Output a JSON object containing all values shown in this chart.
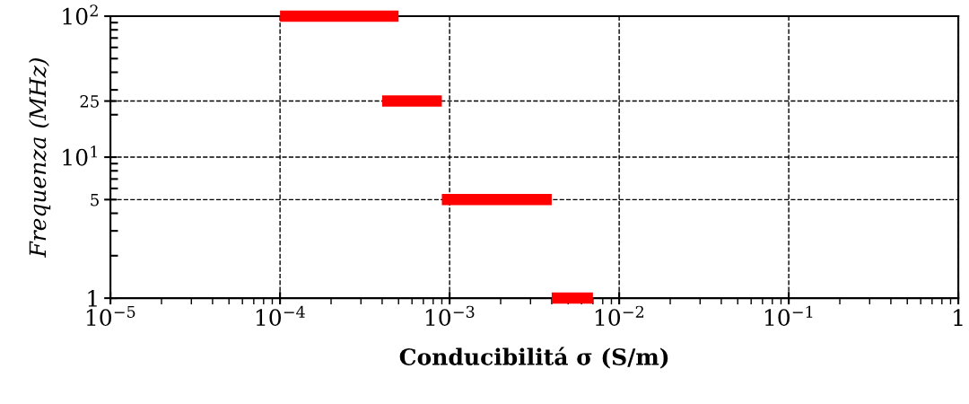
{
  "chart_data": {
    "type": "line",
    "xlabel": "Conducibilitá σ (S/m)",
    "ylabel": "Frequenza (MHz)",
    "log": "xy",
    "grid": true,
    "marker": "none",
    "line_style": "solid",
    "xlim": [
      1e-05,
      1
    ],
    "ylim": [
      1,
      100
    ],
    "xticks": [
      {
        "value": 1e-05,
        "label": "10$^{−5}$"
      },
      {
        "value": 0.0001,
        "label": "10$^{−4}$"
      },
      {
        "value": 0.001,
        "label": "10$^{−3}$"
      },
      {
        "value": 0.01,
        "label": "10$^{−2}$"
      },
      {
        "value": 0.1,
        "label": "10$^{−1}$"
      },
      1
    ],
    "yticks": [
      1,
      5,
      {
        "value": 10,
        "label": "10$^{1}$"
      },
      25,
      {
        "value": 100,
        "label": "10$^{2}$"
      }
    ],
    "series": [
      {
        "color": "#ff0000",
        "x": [
          0.0001,
          0.0005
        ],
        "values": [
          100,
          100
        ]
      },
      {
        "color": "#ff0000",
        "x": [
          0.0004,
          0.0009
        ],
        "values": [
          25,
          25
        ]
      },
      {
        "color": "#ff0000",
        "x": [
          0.0009,
          0.004
        ],
        "values": [
          5,
          5
        ]
      },
      {
        "color": "#ff0000",
        "x": [
          0.004,
          0.007
        ],
        "values": [
          1,
          1
        ]
      }
    ]
  }
}
